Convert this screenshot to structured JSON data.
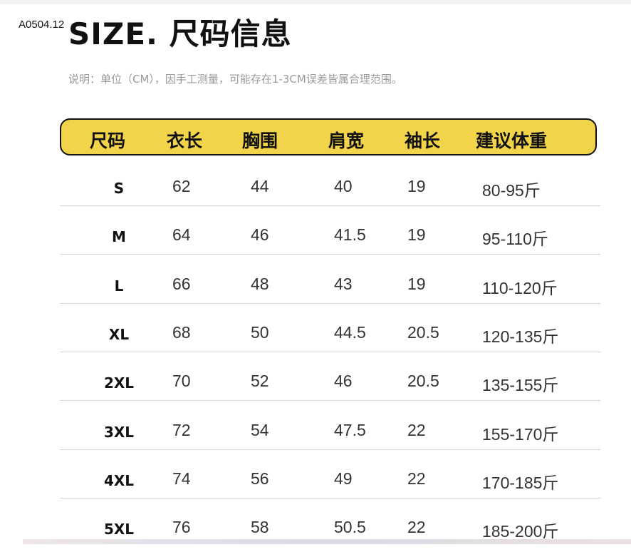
{
  "product_code": "A0504.12",
  "title": "SIZE. 尺码信息",
  "note": "说明：单位（CM），因手工测量，可能存在1-3CM误差皆属合理范围。",
  "colors": {
    "header_bg": "#f2d44a",
    "header_border": "#111111"
  },
  "table": {
    "headers": [
      "尺码",
      "衣长",
      "胸围",
      "肩宽",
      "袖长",
      "建议体重"
    ],
    "rows": [
      [
        "S",
        "62",
        "44",
        "40",
        "19",
        "80-95斤"
      ],
      [
        "M",
        "64",
        "46",
        "41.5",
        "19",
        "95-110斤"
      ],
      [
        "L",
        "66",
        "48",
        "43",
        "19",
        "110-120斤"
      ],
      [
        "XL",
        "68",
        "50",
        "44.5",
        "20.5",
        "120-135斤"
      ],
      [
        "2XL",
        "70",
        "52",
        "46",
        "20.5",
        "135-155斤"
      ],
      [
        "3XL",
        "72",
        "54",
        "47.5",
        "22",
        "155-170斤"
      ],
      [
        "4XL",
        "74",
        "56",
        "49",
        "22",
        "170-185斤"
      ],
      [
        "5XL",
        "76",
        "58",
        "50.5",
        "22",
        "185-200斤"
      ]
    ]
  }
}
